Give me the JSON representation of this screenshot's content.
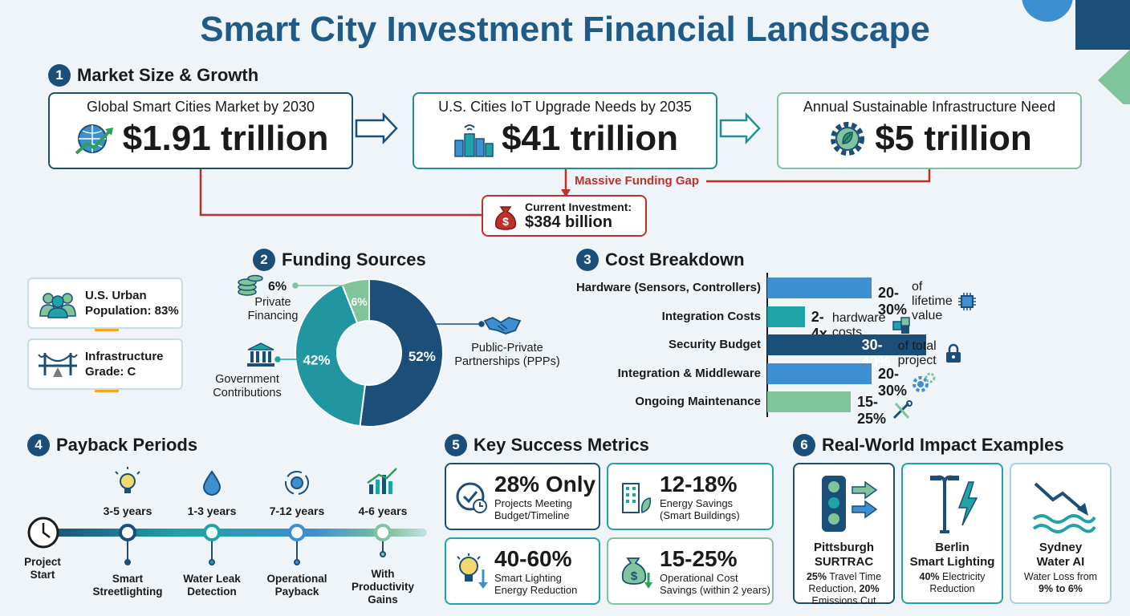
{
  "title": "Smart City Investment Financial Landscape",
  "market": {
    "section_num": "1",
    "section_title": "Market Size & Growth",
    "boxes": [
      {
        "label": "Global Smart Cities Market by 2030",
        "value": "$1.91 trillion",
        "icon": "globe-growth-icon",
        "color": "#1b4f7a"
      },
      {
        "label": "U.S. Cities IoT Upgrade Needs by 2035",
        "value": "$41 trillion",
        "icon": "city-wifi-icon",
        "color": "#1f8f95"
      },
      {
        "label": "Annual Sustainable Infrastructure Need",
        "value": "$5 trillion",
        "icon": "leaf-gear-icon",
        "color": "#7fc49a"
      }
    ],
    "gap_label": "Massive Funding Gap",
    "current_label": "Current Investment:",
    "current_value": "$384 billion",
    "gap_color": "#c0302b"
  },
  "side_stats": [
    {
      "label": "U.S. Urban Population: 83%",
      "icon": "people-icon"
    },
    {
      "label": "Infrastructure Grade: C",
      "icon": "bridge-icon"
    }
  ],
  "funding": {
    "section_num": "2",
    "section_title": "Funding Sources",
    "chart_data": {
      "type": "pie",
      "slices": [
        {
          "name": "Public-Private Partnerships (PPPs)",
          "value": 52,
          "label": "52%",
          "color": "#1b4f7a"
        },
        {
          "name": "Government Contributions",
          "value": 42,
          "label": "42%",
          "color": "#2196a0"
        },
        {
          "name": "Private Financing",
          "value": 6,
          "label": "6%",
          "color": "#7fc49a"
        }
      ]
    },
    "private_pct": "6%",
    "private_label": "Private Financing",
    "gov_label": "Government Contributions",
    "ppp_label": "Public-Private Partnerships (PPPs)"
  },
  "cost": {
    "section_num": "3",
    "section_title": "Cost Breakdown",
    "rows": [
      {
        "label": "Hardware (Sensors, Controllers)",
        "bold": "20-30%",
        "note": "of lifetime value",
        "color": "#3d8fd0",
        "value": 25,
        "icon": "chip-icon"
      },
      {
        "label": "Integration Costs",
        "bold": "2-4x",
        "note": "hardware costs",
        "color": "#1fa3a6",
        "value": 9,
        "icon": "puzzle-icon"
      },
      {
        "label": "Security Budget",
        "bold": "30-40%",
        "note": "of total project",
        "color": "#1b4f7a",
        "value": 38,
        "icon": "lock-icon"
      },
      {
        "label": "Integration & Middleware",
        "bold": "20-30%",
        "note": "",
        "color": "#3d8fd0",
        "value": 25,
        "icon": "gears-icon"
      },
      {
        "label": "Ongoing Maintenance",
        "bold": "15-25%",
        "note": "",
        "color": "#7fc49a",
        "value": 20,
        "icon": "tools-icon"
      }
    ]
  },
  "payback": {
    "section_num": "4",
    "section_title": "Payback Periods",
    "start_label": "Project Start",
    "items": [
      {
        "years": "3-5 years",
        "label": "Smart Streetlighting",
        "icon": "bulb-icon"
      },
      {
        "years": "1-3 years",
        "label": "Water Leak Detection",
        "icon": "drop-icon"
      },
      {
        "years": "7-12 years",
        "label": "Operational Payback",
        "icon": "cycle-gear-icon"
      },
      {
        "years": "4-6 years",
        "label": "With Productivity Gains",
        "icon": "bar-growth-icon"
      }
    ]
  },
  "metrics": {
    "section_num": "5",
    "section_title": "Key Success Metrics",
    "items": [
      {
        "big": "28% Only",
        "small1": "Projects Meeting",
        "small2": "Budget/Timeline",
        "color": "#1b4f7a",
        "icon": "clock-check-icon"
      },
      {
        "big": "12-18%",
        "small1": "Energy Savings",
        "small2": "(Smart Buildings)",
        "color": "#1fa3a6",
        "icon": "building-leaf-icon"
      },
      {
        "big": "40-60%",
        "small1": "Smart Lighting",
        "small2": "Energy Reduction",
        "color": "#1fa3a6",
        "icon": "bulb-down-icon"
      },
      {
        "big": "15-25%",
        "small1": "Operational Cost",
        "small2": "Savings (within 2 years)",
        "color": "#7fc49a",
        "icon": "money-bag-down-icon"
      }
    ]
  },
  "impact": {
    "section_num": "6",
    "section_title": "Real-World Impact Examples",
    "items": [
      {
        "city": "Pittsburgh",
        "name": "SURTRAC",
        "bold": "25%",
        "text1": " Travel Time",
        "text2": "Reduction, ",
        "bold2": "20%",
        "text3": "Emissions Cut",
        "color": "#1b4f7a",
        "icon": "traffic-light-icon"
      },
      {
        "city": "Berlin",
        "name": "Smart Lighting",
        "bold": "40%",
        "text1": " Electricity",
        "text2": "Reduction",
        "bold2": "",
        "text3": "",
        "color": "#1fa3a6",
        "icon": "streetlight-icon"
      },
      {
        "city": "Sydney",
        "name": "Water AI",
        "bold": "",
        "text1": "Water Loss from",
        "text2": "",
        "bold2": "9% to 6%",
        "text3": "",
        "color": "#a9cfe3",
        "icon": "water-wave-icon"
      }
    ]
  }
}
